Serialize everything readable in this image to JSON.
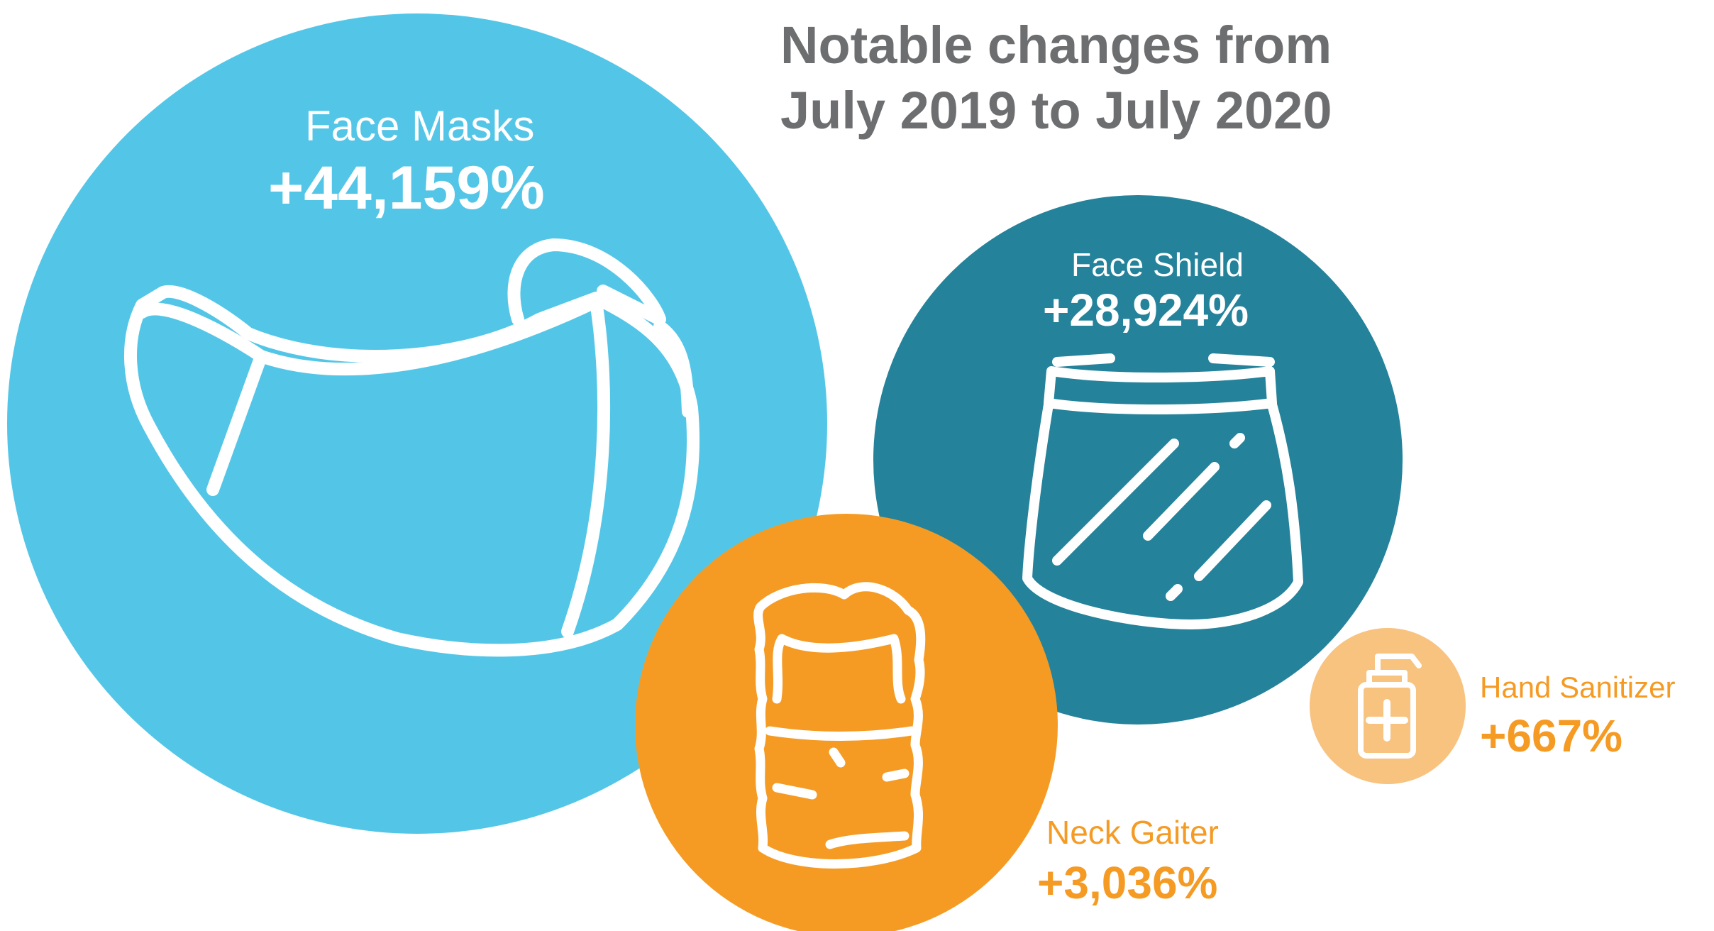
{
  "title": {
    "line1": "Notable changes from",
    "line2": "July 2019 to July 2020"
  },
  "colors": {
    "face_masks": "#53c6e8",
    "face_shield": "#24829a",
    "neck_gaiter": "#f59b24",
    "hand_sanitizer": "#f8c27f",
    "title_text": "#6d6e70",
    "label_on_circle": "#ffffff",
    "label_orange": "#f59b24"
  },
  "items": [
    {
      "name": "Face Masks",
      "change": "+44,159%",
      "icon": "face-mask-icon"
    },
    {
      "name": "Face Shield",
      "change": "+28,924%",
      "icon": "face-shield-icon"
    },
    {
      "name": "Neck Gaiter",
      "change": "+3,036%",
      "icon": "neck-gaiter-icon"
    },
    {
      "name": "Hand Sanitizer",
      "change": "+667%",
      "icon": "hand-sanitizer-icon"
    }
  ]
}
